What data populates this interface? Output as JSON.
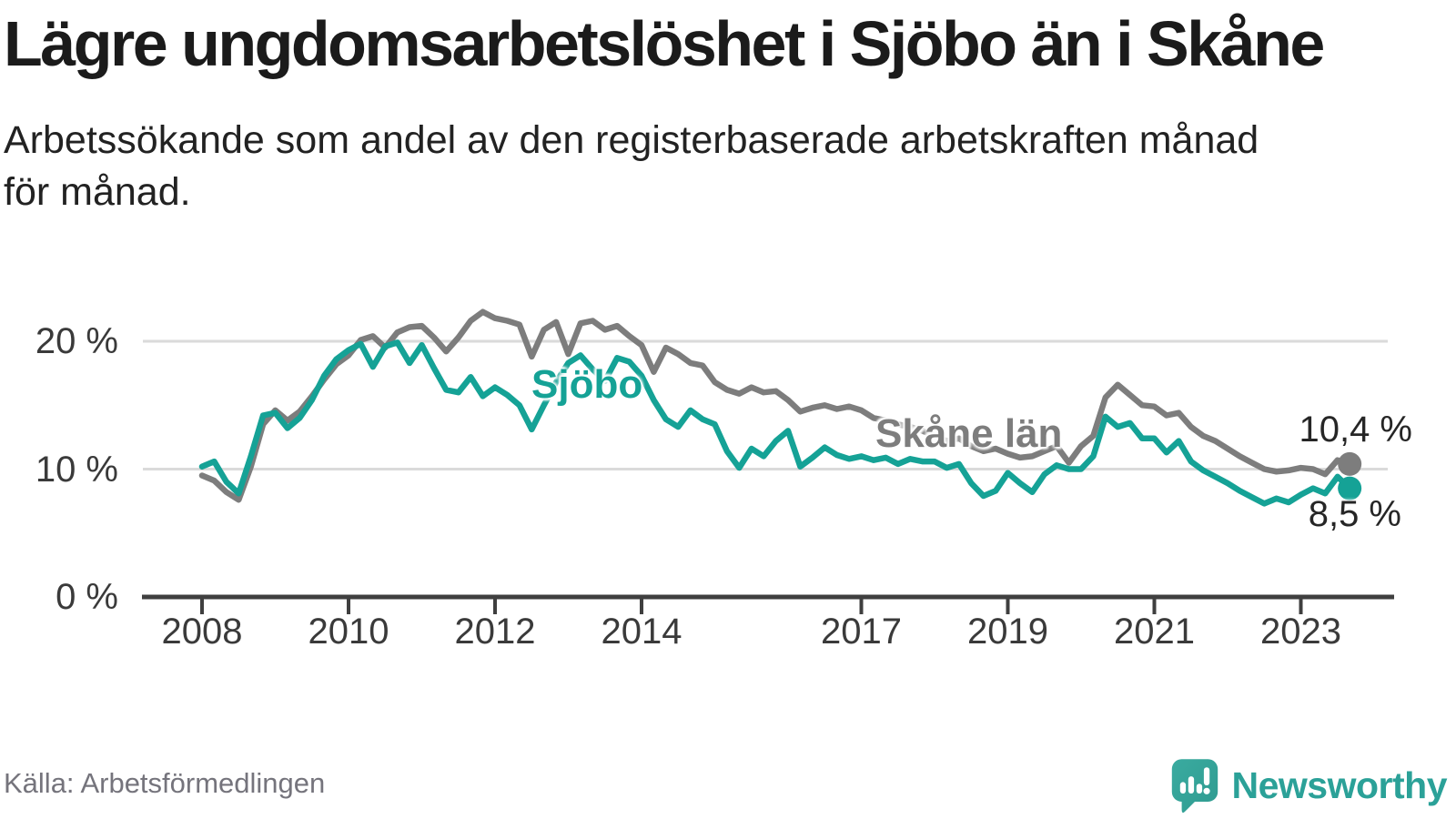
{
  "header": {
    "title": "Lägre ungdomsarbetslöshet i Sjöbo än i Skåne",
    "subtitle": "Arbetssökande som andel av den registerbaserade arbetskraften månad för månad.",
    "subtitle_line1": "Arbetssökande som andel av den registerbaserade arbetskraften månad",
    "subtitle_line2": "för månad."
  },
  "footer": {
    "source": "Källa: Arbetsförmedlingen",
    "brand": "Newsworthy"
  },
  "colors": {
    "sjobo_teal": "#15a296",
    "skane_gray": "#7d7d7d",
    "axis": "#3f3f3f",
    "gridline": "#dadada",
    "title_text": "#1b1b1b",
    "source_text": "#75747c",
    "brand_teal": "#2ba198"
  },
  "chart_data": {
    "type": "line",
    "title": "Lägre ungdomsarbetslöshet i Sjöbo än i Skåne",
    "subtitle": "Arbetssökande som andel av den registerbaserade arbetskraften månad för månad.",
    "unit": "%",
    "grid": "horizontal",
    "legend_position": "inline-labels",
    "x_start_year": 2008,
    "points_per_year": 6,
    "xlim": [
      2007.2,
      2024.3
    ],
    "ylim": [
      0,
      24
    ],
    "x_ticks": [
      {
        "year": 2008,
        "label": "2008"
      },
      {
        "year": 2010,
        "label": "2010"
      },
      {
        "year": 2012,
        "label": "2012"
      },
      {
        "year": 2014,
        "label": "2014"
      },
      {
        "year": 2017,
        "label": "2017"
      },
      {
        "year": 2019,
        "label": "2019"
      },
      {
        "year": 2021,
        "label": "2021"
      },
      {
        "year": 2023,
        "label": "2023"
      }
    ],
    "y_ticks": [
      {
        "value": 20,
        "label": "20 %"
      },
      {
        "value": 10,
        "label": "10 %"
      },
      {
        "value": 0,
        "label": "0 %"
      }
    ],
    "series": [
      {
        "name": "Skåne län",
        "color": "#7d7d7d",
        "end_value": 10.4,
        "end_label": "10,4 %",
        "values": [
          9.5,
          9.1,
          8.2,
          7.6,
          10.2,
          13.5,
          14.6,
          13.8,
          14.5,
          15.7,
          17.0,
          18.2,
          18.9,
          20.1,
          20.4,
          19.5,
          20.7,
          21.1,
          21.2,
          20.3,
          19.2,
          20.3,
          21.6,
          22.3,
          21.8,
          21.6,
          21.3,
          18.8,
          20.9,
          21.5,
          19.0,
          21.4,
          21.6,
          20.9,
          21.2,
          20.4,
          19.7,
          17.6,
          19.5,
          19.0,
          18.3,
          18.1,
          16.8,
          16.2,
          15.9,
          16.4,
          16.0,
          16.1,
          15.4,
          14.5,
          14.8,
          15.0,
          14.7,
          14.9,
          14.6,
          14.0,
          13.8,
          13.5,
          13.3,
          13.0,
          12.6,
          12.2,
          12.4,
          11.8,
          11.4,
          11.6,
          11.2,
          10.9,
          11.0,
          11.4,
          11.8,
          10.5,
          11.8,
          12.6,
          15.6,
          16.6,
          15.8,
          15.0,
          14.9,
          14.2,
          14.4,
          13.3,
          12.6,
          12.2,
          11.6,
          11.0,
          10.5,
          10.0,
          9.8,
          9.9,
          10.1,
          10.0,
          9.6,
          10.7,
          10.4
        ]
      },
      {
        "name": "Sjöbo",
        "color": "#15a296",
        "end_value": 8.5,
        "end_label": "8,5 %",
        "values": [
          10.2,
          10.6,
          9.0,
          8.1,
          11.0,
          14.2,
          14.4,
          13.2,
          14.0,
          15.4,
          17.3,
          18.6,
          19.3,
          19.8,
          18.0,
          19.6,
          19.9,
          18.3,
          19.7,
          17.9,
          16.2,
          16.0,
          17.2,
          15.7,
          16.4,
          15.8,
          15.0,
          13.1,
          15.0,
          16.8,
          18.3,
          18.9,
          17.8,
          16.9,
          18.7,
          18.4,
          17.3,
          15.4,
          13.9,
          13.3,
          14.6,
          13.9,
          13.5,
          11.4,
          10.1,
          11.6,
          11.0,
          12.2,
          13.0,
          10.2,
          10.9,
          11.7,
          11.1,
          10.8,
          11.0,
          10.7,
          10.9,
          10.4,
          10.8,
          10.6,
          10.6,
          10.1,
          10.4,
          8.9,
          7.9,
          8.3,
          9.7,
          8.9,
          8.2,
          9.6,
          10.3,
          10.0,
          10.0,
          11.0,
          14.1,
          13.3,
          13.6,
          12.4,
          12.4,
          11.3,
          12.2,
          10.6,
          9.9,
          9.4,
          8.9,
          8.3,
          7.8,
          7.3,
          7.7,
          7.4,
          8.0,
          8.5,
          8.1,
          9.4,
          8.5
        ]
      }
    ]
  }
}
